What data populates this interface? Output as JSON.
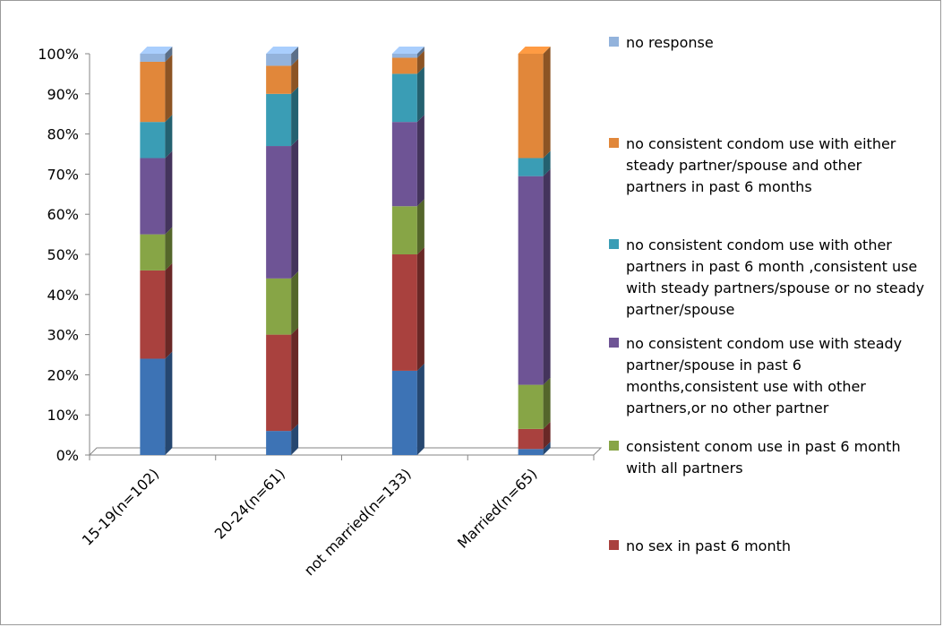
{
  "chart_data": {
    "type": "bar",
    "stacked": true,
    "three_d": true,
    "categories": [
      "15-19(n=102)",
      "20-24(n=61)",
      "not married(n=133)",
      "Married(n=65)"
    ],
    "y_ticks": [
      "0%",
      "10%",
      "20%",
      "30%",
      "40%",
      "50%",
      "60%",
      "70%",
      "80%",
      "90%",
      "100%"
    ],
    "ylim": [
      0,
      100
    ],
    "unit": "%",
    "legend_position": "right",
    "series": [
      {
        "name": "no sex in past 6 month",
        "color": "#a9413e",
        "values": [
          0,
          0,
          0,
          0
        ]
      },
      {
        "name": "consistent conom use in past 6 month with all partners",
        "color": "#87a546",
        "values": [
          0,
          0,
          0,
          0
        ]
      },
      {
        "name": "no consistent condom use with steady partner/spouse in past 6 months,consistent use with other partners,or no other partner",
        "color": "#6e5495",
        "values": [
          0,
          0,
          0,
          0
        ]
      },
      {
        "name": "no consistent condom use with other partners in past 6 month ,consistent use with steady partners/spouse or no steady partner/spouse",
        "color": "#3a9db5",
        "values": [
          0,
          0,
          0,
          0
        ]
      },
      {
        "name": "no consistent condom use with either steady partner/spouse and other partners in past 6 months",
        "color": "#e1873a",
        "values": [
          0,
          0,
          0,
          0
        ]
      },
      {
        "name": "no response",
        "color": "#93b3dc",
        "values": [
          0,
          0,
          0,
          0
        ]
      }
    ],
    "stacks": [
      {
        "category": "15-19(n=102)",
        "segments": [
          {
            "color": "#3d73b5",
            "value": 24
          },
          {
            "color": "#a9413e",
            "value": 22
          },
          {
            "color": "#87a546",
            "value": 9
          },
          {
            "color": "#6e5495",
            "value": 19
          },
          {
            "color": "#3a9db5",
            "value": 9
          },
          {
            "color": "#e1873a",
            "value": 15
          },
          {
            "color": "#93b3dc",
            "value": 2
          }
        ]
      },
      {
        "category": "20-24(n=61)",
        "segments": [
          {
            "color": "#3d73b5",
            "value": 6
          },
          {
            "color": "#a9413e",
            "value": 24
          },
          {
            "color": "#87a546",
            "value": 14
          },
          {
            "color": "#6e5495",
            "value": 33
          },
          {
            "color": "#3a9db5",
            "value": 13
          },
          {
            "color": "#e1873a",
            "value": 7
          },
          {
            "color": "#93b3dc",
            "value": 3
          }
        ]
      },
      {
        "category": "not married(n=133)",
        "segments": [
          {
            "color": "#3d73b5",
            "value": 21
          },
          {
            "color": "#a9413e",
            "value": 29
          },
          {
            "color": "#87a546",
            "value": 12
          },
          {
            "color": "#6e5495",
            "value": 21
          },
          {
            "color": "#3a9db5",
            "value": 12
          },
          {
            "color": "#e1873a",
            "value": 4
          },
          {
            "color": "#93b3dc",
            "value": 1
          }
        ]
      },
      {
        "category": "Married(n=65)",
        "segments": [
          {
            "color": "#3d73b5",
            "value": 1.5
          },
          {
            "color": "#a9413e",
            "value": 5
          },
          {
            "color": "#87a546",
            "value": 11
          },
          {
            "color": "#6e5495",
            "value": 52
          },
          {
            "color": "#3a9db5",
            "value": 4.5
          },
          {
            "color": "#e1873a",
            "value": 26
          },
          {
            "color": "#93b3dc",
            "value": 0
          }
        ]
      }
    ],
    "legend": [
      {
        "label": "no response",
        "color": "#93b3dc"
      },
      {
        "label": "no consistent condom use with either steady partner/spouse and other partners in past 6 months",
        "color": "#e1873a"
      },
      {
        "label": "no consistent condom use with other partners in past 6 month ,consistent use with steady partners/spouse or no steady partner/spouse",
        "color": "#3a9db5"
      },
      {
        "label": "no consistent condom use with steady partner/spouse in past 6 months,consistent use with other partners,or no other partner",
        "color": "#6e5495"
      },
      {
        "label": "consistent conom use in past 6 month with all partners",
        "color": "#87a546"
      },
      {
        "label": "no sex in past 6 month",
        "color": "#a9413e"
      }
    ]
  }
}
